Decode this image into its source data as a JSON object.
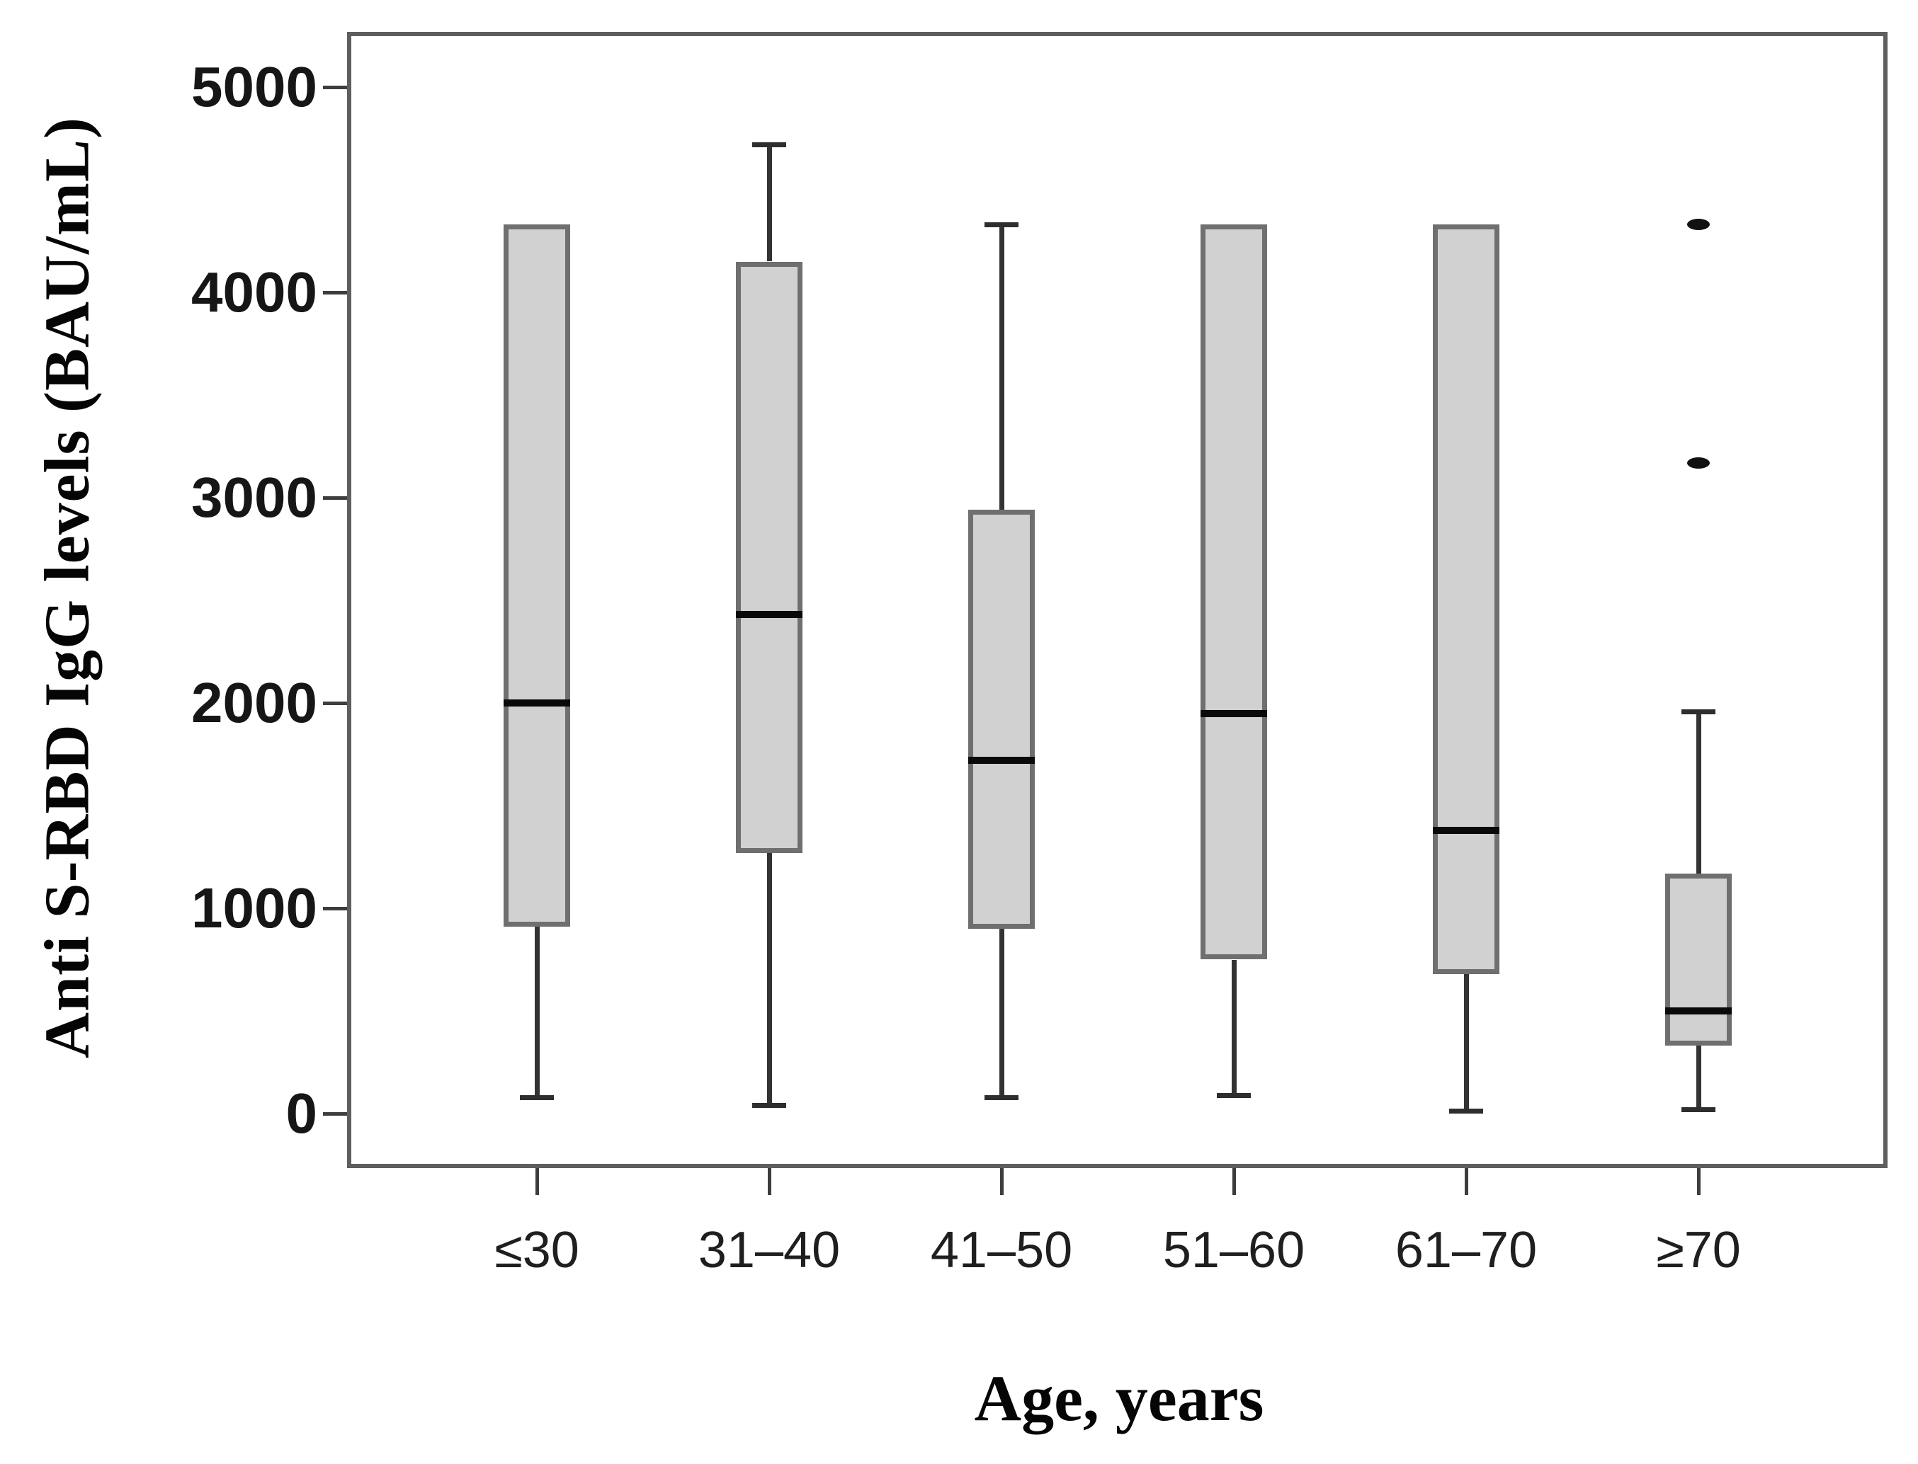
{
  "figure": {
    "background": "#ffffff"
  },
  "chart_data": {
    "type": "box",
    "title": "",
    "xlabel": "Age, years",
    "ylabel": "Anti S-RBD IgG levels (BAU/mL)",
    "categories": [
      "≤30",
      "31–40",
      "41–50",
      "51–60",
      "61–70",
      "≥70"
    ],
    "y_ticks": [
      0,
      1000,
      2000,
      3000,
      4000,
      5000
    ],
    "ylim": [
      -265,
      5270
    ],
    "grid": false,
    "legend": "none",
    "boxes": [
      {
        "category": "≤30",
        "whisker_low": 80,
        "q1": 910,
        "median": 2000,
        "q3": 4330,
        "whisker_high": 4330,
        "outliers": []
      },
      {
        "category": "31–40",
        "whisker_low": 40,
        "q1": 1270,
        "median": 2430,
        "q3": 4150,
        "whisker_high": 4720,
        "outliers": []
      },
      {
        "category": "41–50",
        "whisker_low": 80,
        "q1": 900,
        "median": 1720,
        "q3": 2940,
        "whisker_high": 4330,
        "outliers": []
      },
      {
        "category": "51–60",
        "whisker_low": 90,
        "q1": 750,
        "median": 1950,
        "q3": 4330,
        "whisker_high": 4330,
        "outliers": []
      },
      {
        "category": "61–70",
        "whisker_low": 15,
        "q1": 680,
        "median": 1380,
        "q3": 4330,
        "whisker_high": 4330,
        "outliers": []
      },
      {
        "category": "≥70",
        "whisker_low": 20,
        "q1": 330,
        "median": 500,
        "q3": 1170,
        "whisker_high": 1960,
        "outliers": [
          3170,
          4330
        ]
      }
    ],
    "colors": {
      "box_fill": "#d1d1d1",
      "box_border": "#6f6f6f",
      "median": "#0a0a0a",
      "whisker": "#333333",
      "frame": "#5e5e5e",
      "outlier": "#111111",
      "tick_label": "#161616"
    }
  }
}
